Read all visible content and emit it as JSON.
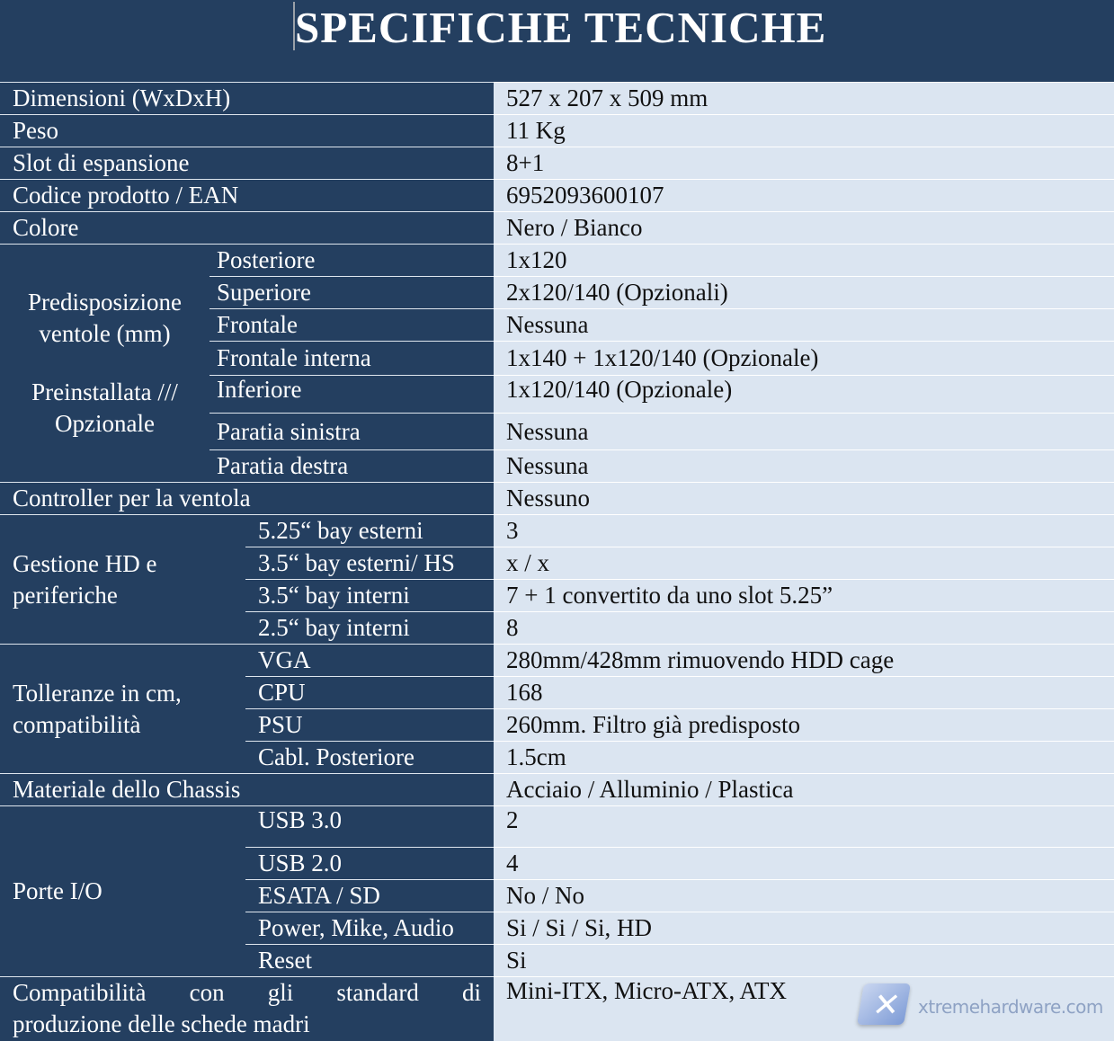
{
  "title": "SPECIFICHE TECNICHE",
  "rows": {
    "dimensioni": {
      "label": "Dimensioni (WxDxH)",
      "value": "527 x 207 x 509 mm"
    },
    "peso": {
      "label": "Peso",
      "value": "11 Kg"
    },
    "slot": {
      "label": "Slot di espansione",
      "value": "8+1"
    },
    "codice": {
      "label": "Codice prodotto / EAN",
      "value": "6952093600107"
    },
    "colore": {
      "label": "Colore",
      "value": "Nero / Bianco"
    },
    "controller": {
      "label": "Controller per la ventola",
      "value": "Nessuno"
    },
    "materiale": {
      "label": "Materiale dello Chassis",
      "value": "Acciaio / Alluminio / Plastica"
    },
    "compat": {
      "label_words": [
        "Compatibilità",
        "con",
        "gli",
        "standard",
        "di"
      ],
      "label_line2": "produzione delle schede madri",
      "value": "Mini-ITX, Micro-ATX, ATX"
    }
  },
  "fans": {
    "group_line1": "Predisposizione",
    "group_line2": "ventole (mm)",
    "group_line3": "Preinstallata ///",
    "group_line4": "Opzionale",
    "items": [
      {
        "label": "Posteriore",
        "value": "1x120"
      },
      {
        "label": "Superiore",
        "value": "2x120/140 (Opzionali)"
      },
      {
        "label": "Frontale",
        "value": "Nessuna"
      },
      {
        "label": "Frontale interna",
        "value": "1x140 + 1x120/140 (Opzionale)"
      },
      {
        "label": "Inferiore",
        "value": "1x120/140 (Opzionale)"
      },
      {
        "label": "Paratia sinistra",
        "value": "Nessuna"
      },
      {
        "label": "Paratia destra",
        "value": "Nessuna"
      }
    ]
  },
  "storage": {
    "group_line1": "Gestione HD e",
    "group_line2": "periferiche",
    "items": [
      {
        "label": "5.25“ bay esterni",
        "value": "3"
      },
      {
        "label": "3.5“ bay esterni/ HS",
        "value": "x / x"
      },
      {
        "label": "3.5“ bay interni",
        "value": "7 + 1 convertito da uno slot 5.25”"
      },
      {
        "label": "2.5“ bay interni",
        "value": "8"
      }
    ]
  },
  "tolerance": {
    "group_line1": "Tolleranze in cm,",
    "group_line2": "compatibilità",
    "items": [
      {
        "label": "VGA",
        "value": "280mm/428mm rimuovendo HDD cage"
      },
      {
        "label": "CPU",
        "value": "168"
      },
      {
        "label": "PSU",
        "value": "260mm. Filtro già predisposto"
      },
      {
        "label": "Cabl. Posteriore",
        "value": "1.5cm"
      }
    ]
  },
  "io": {
    "group_label": "Porte I/O",
    "items": [
      {
        "label": "USB 3.0",
        "value": "2"
      },
      {
        "label": "USB 2.0",
        "value": "4"
      },
      {
        "label": "ESATA / SD",
        "value": "No / No"
      },
      {
        "label": "Power, Mike, Audio",
        "value": "Si / Si / Si, HD"
      },
      {
        "label": "Reset",
        "value": "Si"
      }
    ]
  },
  "watermark": "xtremehardware.com",
  "colors": {
    "dark": "#243f60",
    "light": "#dbe5f1"
  }
}
